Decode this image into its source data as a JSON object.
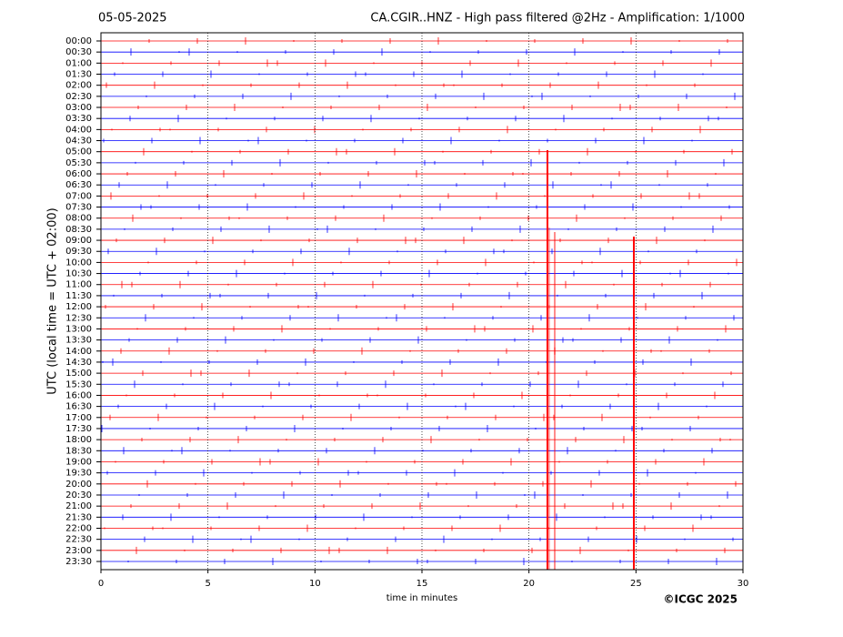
{
  "chart_data": {
    "type": "helicorder",
    "date": "05-05-2025",
    "title": "CA.CGIR..HNZ - High pass filtered @2Hz - Amplification: 1/1000",
    "ylabel": "UTC (local time = UTC + 02:00)",
    "xlabel": "time in minutes",
    "copyright": "©ICGC 2025",
    "categories": [
      "00:00",
      "00:30",
      "01:00",
      "01:30",
      "02:00",
      "02:30",
      "03:00",
      "03:30",
      "04:00",
      "04:30",
      "05:00",
      "05:30",
      "06:00",
      "06:30",
      "07:00",
      "07:30",
      "08:00",
      "08:30",
      "09:00",
      "09:30",
      "10:00",
      "10:30",
      "11:00",
      "11:30",
      "12:00",
      "12:30",
      "13:00",
      "13:30",
      "14:00",
      "14:30",
      "15:00",
      "15:30",
      "16:00",
      "16:30",
      "17:00",
      "17:30",
      "18:00",
      "18:30",
      "19:00",
      "19:30",
      "20:00",
      "20:30",
      "21:00",
      "21:30",
      "22:00",
      "22:30",
      "23:00",
      "23:30"
    ],
    "colors": [
      "#ff0000",
      "#0000ff"
    ],
    "xlim": [
      0,
      30
    ],
    "xticks": [
      0,
      5,
      10,
      15,
      20,
      25,
      30
    ],
    "grid": true
  }
}
